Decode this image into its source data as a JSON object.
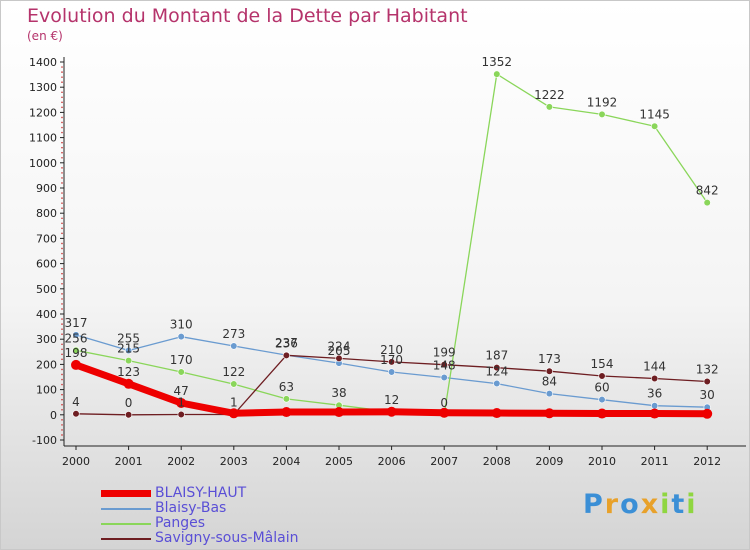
{
  "title": "Evolution du Montant de la Dette par Habitant",
  "subtitle": "(en €)",
  "logo": "Proxiti",
  "colors": {
    "title": "#b5336b",
    "legend_text": "#5a4fd6",
    "axis": "#222222"
  },
  "chart_data": {
    "type": "line",
    "title": "Evolution du Montant de la Dette par Habitant",
    "subtitle": "(en €)",
    "xlabel": "",
    "ylabel": "",
    "x": [
      "2000",
      "2001",
      "2002",
      "2003",
      "2004",
      "2005",
      "2006",
      "2007",
      "2008",
      "2009",
      "2010",
      "2011",
      "2012"
    ],
    "ylim": [
      -100,
      1400
    ],
    "yticks": [
      -100,
      0,
      100,
      200,
      300,
      400,
      500,
      600,
      700,
      800,
      900,
      1000,
      1100,
      1200,
      1300,
      1400
    ],
    "grid": false,
    "legend_position": "bottom-left",
    "series": [
      {
        "name": "BLAISY-HAUT",
        "color": "#ee0000",
        "values": [
          198,
          123,
          47,
          6,
          11,
          11,
          12,
          8,
          7,
          6,
          5,
          5,
          4
        ],
        "width": 7,
        "dot": 5,
        "labels": [
          0,
          1,
          2
        ]
      },
      {
        "name": "Blaisy-Bas",
        "color": "#6a9bd0",
        "values": [
          317,
          255,
          310,
          273,
          237,
          205,
          170,
          148,
          124,
          84,
          60,
          36,
          30
        ],
        "width": 1.3,
        "dot": 3.3,
        "labels": [
          0,
          1,
          2,
          3,
          4,
          5,
          6,
          7,
          8,
          9,
          10,
          11,
          12
        ]
      },
      {
        "name": "Panges",
        "color": "#8ad65a",
        "values": [
          256,
          215,
          170,
          122,
          63,
          38,
          12,
          0,
          1352,
          1222,
          1192,
          1145,
          842
        ],
        "width": 1.3,
        "dot": 3.3,
        "labels": [
          0,
          1,
          2,
          3,
          4,
          5,
          6,
          7,
          8,
          9,
          10,
          11,
          12
        ]
      },
      {
        "name": "Savigny-sous-Mâlain",
        "color": "#6e1e22",
        "values": [
          4,
          0,
          1,
          1,
          236,
          224,
          210,
          199,
          187,
          173,
          154,
          144,
          132
        ],
        "width": 1.3,
        "dot": 3.3,
        "labels": [
          0,
          1,
          2,
          3,
          4,
          5,
          6,
          7,
          8,
          9,
          10,
          11,
          12
        ]
      }
    ]
  }
}
